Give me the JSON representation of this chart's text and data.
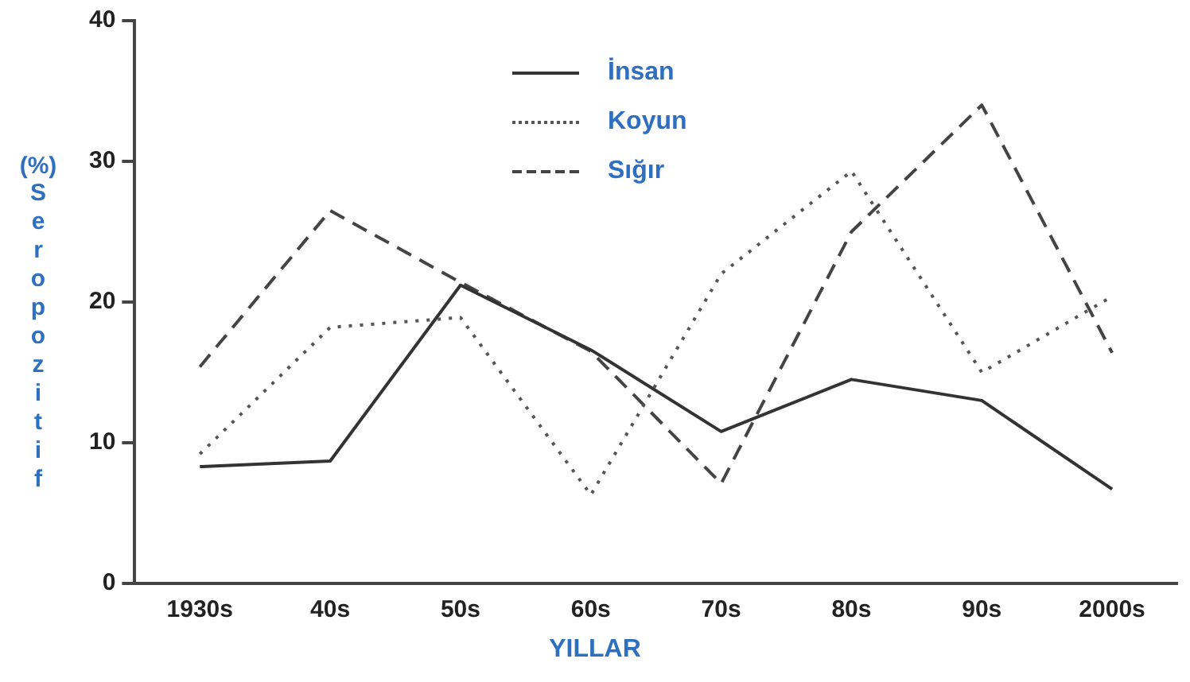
{
  "chart_data": {
    "type": "line",
    "xlabel": "YILLAR",
    "ylabel": "(%) Seropozitif",
    "categories": [
      "1930s",
      "40s",
      "50s",
      "60s",
      "70s",
      "80s",
      "90s",
      "2000s"
    ],
    "ylim": [
      0,
      40
    ],
    "yticks": [
      0,
      10,
      20,
      30,
      40
    ],
    "grid": false,
    "legend": "top",
    "marker": "none",
    "series": [
      {
        "name": "İnsan",
        "color": "#333333",
        "line_style": "solid",
        "values": [
          8.3,
          8.7,
          21.2,
          16.6,
          10.8,
          14.5,
          13.0,
          6.7
        ]
      },
      {
        "name": "Koyun",
        "color": "#555555",
        "line_style": "dotted",
        "values": [
          9.2,
          18.2,
          18.9,
          6.3,
          22.0,
          29.3,
          15.0,
          20.4
        ]
      },
      {
        "name": "Sığır",
        "color": "#444444",
        "line_style": "dashed",
        "values": [
          15.4,
          26.5,
          21.4,
          16.5,
          7.1,
          25.0,
          34.0,
          16.4
        ]
      }
    ]
  }
}
